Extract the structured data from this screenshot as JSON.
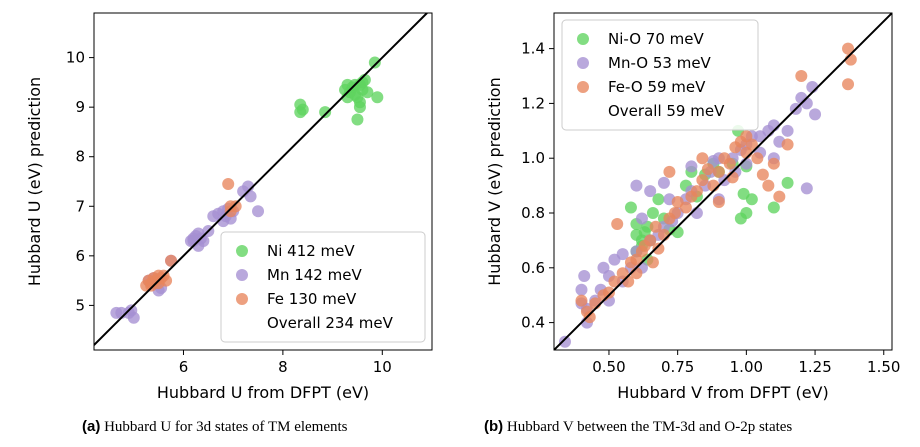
{
  "chart_data": [
    {
      "type": "scatter",
      "xlabel": "Hubbard U from DFPT (eV)",
      "ylabel": "Hubbard U (eV) prediction",
      "xlim": [
        4.2,
        11.0
      ],
      "ylim": [
        4.1,
        10.9
      ],
      "xticks": [
        6,
        8,
        10
      ],
      "yticks": [
        5,
        6,
        7,
        8,
        9,
        10
      ],
      "grid": false,
      "legend_position": "bottom-right",
      "diagonal": true,
      "caption": {
        "label": "(a)",
        "text": "Hubbard U for 3d states of TM elements"
      },
      "series": [
        {
          "name": "Ni 412 meV",
          "color": "#5fd35f",
          "points": [
            [
              8.35,
              9.05
            ],
            [
              8.4,
              8.95
            ],
            [
              8.35,
              8.9
            ],
            [
              8.85,
              8.9
            ],
            [
              9.3,
              9.45
            ],
            [
              9.35,
              9.3
            ],
            [
              9.4,
              9.4
            ],
            [
              9.45,
              9.25
            ],
            [
              9.5,
              9.2
            ],
            [
              9.55,
              9.1
            ],
            [
              9.3,
              9.2
            ],
            [
              9.25,
              9.35
            ],
            [
              9.6,
              9.5
            ],
            [
              9.65,
              9.55
            ],
            [
              9.7,
              9.3
            ],
            [
              9.6,
              9.35
            ],
            [
              9.5,
              8.75
            ],
            [
              9.55,
              9.0
            ],
            [
              9.85,
              9.9
            ],
            [
              9.9,
              9.2
            ],
            [
              9.45,
              9.45
            ],
            [
              9.55,
              9.45
            ]
          ]
        },
        {
          "name": "Mn 142 meV",
          "color": "#a58fd2",
          "points": [
            [
              4.65,
              4.85
            ],
            [
              4.75,
              4.85
            ],
            [
              4.95,
              4.9
            ],
            [
              4.9,
              4.85
            ],
            [
              5.45,
              5.45
            ],
            [
              5.55,
              5.35
            ],
            [
              5.5,
              5.3
            ],
            [
              5.3,
              5.5
            ],
            [
              5.75,
              5.9
            ],
            [
              6.15,
              6.3
            ],
            [
              6.2,
              6.35
            ],
            [
              6.25,
              6.4
            ],
            [
              6.3,
              6.45
            ],
            [
              6.35,
              6.35
            ],
            [
              6.3,
              6.2
            ],
            [
              6.4,
              6.3
            ],
            [
              6.5,
              6.5
            ],
            [
              6.6,
              6.8
            ],
            [
              6.7,
              6.85
            ],
            [
              6.8,
              6.9
            ],
            [
              6.9,
              6.95
            ],
            [
              7.0,
              6.9
            ],
            [
              6.95,
              6.75
            ],
            [
              6.85,
              6.8
            ],
            [
              7.3,
              7.4
            ],
            [
              7.35,
              7.2
            ],
            [
              7.5,
              6.9
            ],
            [
              7.2,
              7.3
            ],
            [
              6.8,
              6.7
            ],
            [
              6.2,
              6.3
            ],
            [
              5.0,
              4.75
            ],
            [
              5.4,
              5.55
            ]
          ]
        },
        {
          "name": "Fe 130 meV",
          "color": "#e8855c",
          "points": [
            [
              5.25,
              5.4
            ],
            [
              5.35,
              5.45
            ],
            [
              5.3,
              5.5
            ],
            [
              5.4,
              5.55
            ],
            [
              5.45,
              5.5
            ],
            [
              5.5,
              5.45
            ],
            [
              5.55,
              5.55
            ],
            [
              5.6,
              5.6
            ],
            [
              5.65,
              5.5
            ],
            [
              5.5,
              5.6
            ],
            [
              5.35,
              5.4
            ],
            [
              5.75,
              5.9
            ],
            [
              6.95,
              7.0
            ],
            [
              6.9,
              7.45
            ],
            [
              7.05,
              7.0
            ],
            [
              6.95,
              6.9
            ]
          ]
        }
      ],
      "overall_label": "Overall 234 meV"
    },
    {
      "type": "scatter",
      "xlabel": "Hubbard V from DFPT (eV)",
      "ylabel": "Hubbard V (eV) prediction",
      "xlim": [
        0.3,
        1.53
      ],
      "ylim": [
        0.3,
        1.53
      ],
      "xticks": [
        0.5,
        0.75,
        1.0,
        1.25,
        1.5
      ],
      "xtick_labels": [
        "0.50",
        "0.75",
        "1.00",
        "1.25",
        "1.50"
      ],
      "yticks": [
        0.4,
        0.6,
        0.8,
        1.0,
        1.2,
        1.4
      ],
      "ytick_labels": [
        "0.4",
        "0.6",
        "0.8",
        "1.0",
        "1.2",
        "1.4"
      ],
      "grid": false,
      "legend_position": "top-left",
      "diagonal": true,
      "caption": {
        "label": "(b)",
        "text": "Hubbard V between the TM-3d and O-2p states"
      },
      "series": [
        {
          "name": "Ni-O 70 meV",
          "color": "#5fd35f",
          "points": [
            [
              0.6,
              0.66
            ],
            [
              0.62,
              0.7
            ],
            [
              0.63,
              0.73
            ],
            [
              0.64,
              0.75
            ],
            [
              0.65,
              0.7
            ],
            [
              0.6,
              0.72
            ],
            [
              0.62,
              0.68
            ],
            [
              0.66,
              0.8
            ],
            [
              0.68,
              0.85
            ],
            [
              0.7,
              0.78
            ],
            [
              0.72,
              0.74
            ],
            [
              0.75,
              0.73
            ],
            [
              0.78,
              0.9
            ],
            [
              0.8,
              0.95
            ],
            [
              0.82,
              0.86
            ],
            [
              0.85,
              0.94
            ],
            [
              0.88,
              0.98
            ],
            [
              0.9,
              0.95
            ],
            [
              0.95,
              0.98
            ],
            [
              0.98,
              0.78
            ],
            [
              1.0,
              0.8
            ],
            [
              1.02,
              0.85
            ],
            [
              0.97,
              1.1
            ],
            [
              1.1,
              0.82
            ],
            [
              1.15,
              0.91
            ],
            [
              0.64,
              0.63
            ],
            [
              0.6,
              0.76
            ],
            [
              0.58,
              0.82
            ],
            [
              1.0,
              0.97
            ],
            [
              0.99,
              0.87
            ]
          ]
        },
        {
          "name": "Mn-O 53 meV",
          "color": "#a58fd2",
          "points": [
            [
              0.34,
              0.33
            ],
            [
              0.4,
              0.47
            ],
            [
              0.4,
              0.52
            ],
            [
              0.41,
              0.57
            ],
            [
              0.42,
              0.45
            ],
            [
              0.45,
              0.48
            ],
            [
              0.47,
              0.52
            ],
            [
              0.48,
              0.6
            ],
            [
              0.5,
              0.57
            ],
            [
              0.52,
              0.63
            ],
            [
              0.55,
              0.55
            ],
            [
              0.55,
              0.65
            ],
            [
              0.58,
              0.6
            ],
            [
              0.6,
              0.66
            ],
            [
              0.62,
              0.6
            ],
            [
              0.65,
              0.7
            ],
            [
              0.68,
              0.72
            ],
            [
              0.7,
              0.75
            ],
            [
              0.72,
              0.85
            ],
            [
              0.73,
              0.77
            ],
            [
              0.75,
              0.8
            ],
            [
              0.78,
              0.85
            ],
            [
              0.8,
              0.88
            ],
            [
              0.8,
              0.97
            ],
            [
              0.82,
              0.8
            ],
            [
              0.85,
              0.9
            ],
            [
              0.87,
              0.95
            ],
            [
              0.9,
              1.0
            ],
            [
              0.9,
              0.85
            ],
            [
              0.92,
              0.92
            ],
            [
              0.95,
              1.0
            ],
            [
              0.96,
              0.95
            ],
            [
              0.98,
              1.03
            ],
            [
              1.0,
              1.05
            ],
            [
              1.0,
              0.98
            ],
            [
              1.02,
              1.08
            ],
            [
              1.05,
              1.02
            ],
            [
              1.08,
              1.1
            ],
            [
              1.1,
              1.12
            ],
            [
              1.1,
              1.0
            ],
            [
              1.12,
              1.06
            ],
            [
              1.15,
              1.1
            ],
            [
              1.18,
              1.18
            ],
            [
              1.2,
              1.22
            ],
            [
              1.22,
              1.2
            ],
            [
              1.24,
              1.26
            ],
            [
              1.25,
              1.16
            ],
            [
              1.22,
              0.89
            ],
            [
              0.65,
              0.88
            ],
            [
              0.7,
              0.91
            ],
            [
              0.62,
              0.78
            ],
            [
              0.6,
              0.9
            ],
            [
              0.5,
              0.48
            ],
            [
              0.42,
              0.4
            ],
            [
              1.05,
              1.08
            ],
            [
              0.88,
              0.99
            ]
          ]
        },
        {
          "name": "Fe-O 59 meV",
          "color": "#e8855c",
          "points": [
            [
              0.4,
              0.48
            ],
            [
              0.42,
              0.44
            ],
            [
              0.43,
              0.42
            ],
            [
              0.45,
              0.47
            ],
            [
              0.48,
              0.5
            ],
            [
              0.5,
              0.51
            ],
            [
              0.52,
              0.55
            ],
            [
              0.53,
              0.76
            ],
            [
              0.55,
              0.58
            ],
            [
              0.58,
              0.62
            ],
            [
              0.6,
              0.63
            ],
            [
              0.62,
              0.66
            ],
            [
              0.63,
              0.68
            ],
            [
              0.65,
              0.7
            ],
            [
              0.67,
              0.75
            ],
            [
              0.68,
              0.67
            ],
            [
              0.7,
              0.72
            ],
            [
              0.72,
              0.78
            ],
            [
              0.74,
              0.8
            ],
            [
              0.75,
              0.84
            ],
            [
              0.78,
              0.82
            ],
            [
              0.8,
              0.86
            ],
            [
              0.82,
              0.88
            ],
            [
              0.84,
              0.92
            ],
            [
              0.86,
              0.96
            ],
            [
              0.88,
              0.9
            ],
            [
              0.9,
              0.95
            ],
            [
              0.92,
              1.0
            ],
            [
              0.94,
              0.98
            ],
            [
              0.96,
              1.04
            ],
            [
              0.98,
              1.06
            ],
            [
              1.0,
              1.02
            ],
            [
              1.02,
              1.05
            ],
            [
              1.04,
              1.0
            ],
            [
              1.06,
              0.94
            ],
            [
              1.08,
              0.9
            ],
            [
              1.1,
              0.98
            ],
            [
              1.12,
              0.86
            ],
            [
              1.15,
              1.05
            ],
            [
              1.2,
              1.3
            ],
            [
              1.37,
              1.4
            ],
            [
              1.38,
              1.36
            ],
            [
              1.37,
              1.27
            ],
            [
              0.66,
              0.62
            ],
            [
              0.72,
              0.95
            ],
            [
              0.84,
              1.0
            ],
            [
              0.9,
              0.84
            ],
            [
              0.6,
              0.58
            ],
            [
              0.57,
              0.55
            ],
            [
              1.0,
              1.08
            ],
            [
              0.95,
              0.93
            ]
          ]
        }
      ],
      "overall_label": "Overall 59 meV"
    }
  ]
}
